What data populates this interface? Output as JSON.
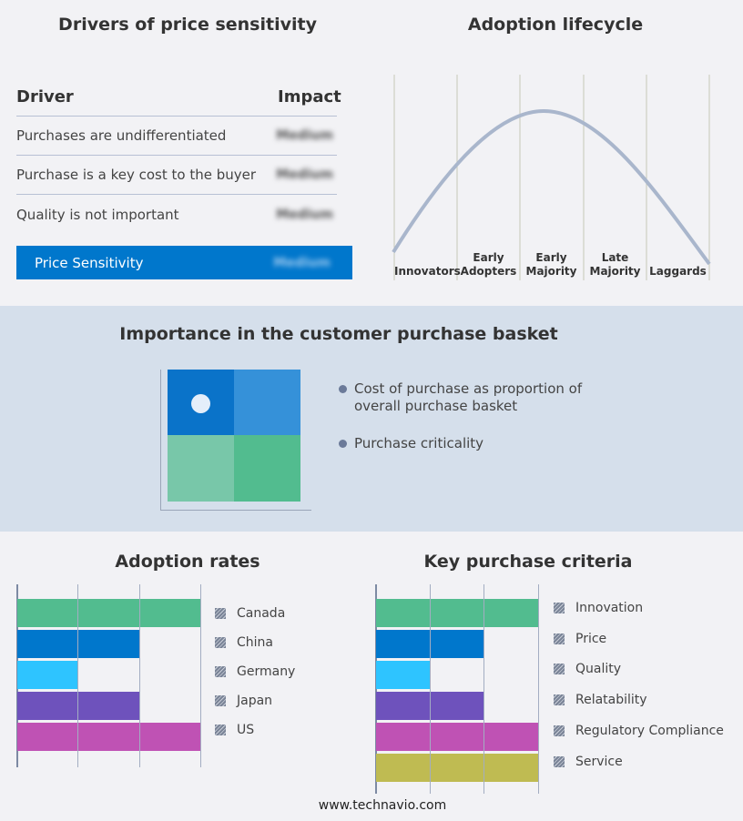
{
  "drivers": {
    "title": "Drivers of price sensitivity",
    "col_driver": "Driver",
    "col_impact": "Impact",
    "rows": [
      {
        "driver": "Purchases are undifferentiated",
        "impact": "Medium"
      },
      {
        "driver": "Purchase is a key cost to the buyer",
        "impact": "Medium"
      },
      {
        "driver": "Quality is not important",
        "impact": "Medium"
      }
    ],
    "summary": {
      "label": "Price Sensitivity",
      "impact": "Medium"
    }
  },
  "lifecycle": {
    "title": "Adoption lifecycle",
    "stages": [
      [
        "Innovators"
      ],
      [
        "Early",
        "Adopters"
      ],
      [
        "Early",
        "Majority"
      ],
      [
        "Late",
        "Majority"
      ],
      [
        "Laggards"
      ]
    ]
  },
  "basket": {
    "title": "Importance in the customer purchase basket",
    "bullets": [
      "Cost of purchase as proportion of overall purchase basket",
      "Purchase criticality"
    ],
    "colors": [
      "#0a73c9",
      "#3591d9",
      "#78c7a9",
      "#52bc8f"
    ]
  },
  "chart_data": [
    {
      "type": "bar",
      "title": "Adoption rates",
      "orientation": "horizontal",
      "categories": [
        "Canada",
        "China",
        "Germany",
        "Japan",
        "US"
      ],
      "values": [
        3,
        2,
        1,
        2,
        3
      ],
      "xlim": [
        0,
        3
      ],
      "grid": true,
      "legend": "right",
      "colors": [
        "#52bc8f",
        "#0077cc",
        "#2ec4ff",
        "#6e52bc",
        "#bf52b4"
      ]
    },
    {
      "type": "bar",
      "title": "Key purchase criteria",
      "orientation": "horizontal",
      "categories": [
        "Innovation",
        "Price",
        "Quality",
        "Relatability",
        "Regulatory Compliance",
        "Service"
      ],
      "values": [
        3,
        2,
        1,
        2,
        3,
        3
      ],
      "xlim": [
        0,
        3
      ],
      "grid": true,
      "legend": "right",
      "colors": [
        "#52bc8f",
        "#0077cc",
        "#2ec4ff",
        "#6e52bc",
        "#bf52b4",
        "#bfbb52"
      ]
    }
  ],
  "footer": "www.technavio.com"
}
